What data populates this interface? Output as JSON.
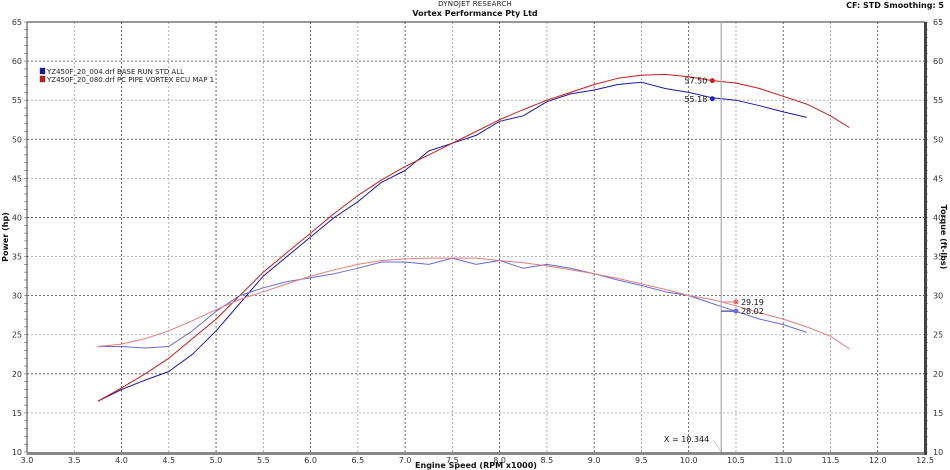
{
  "header": {
    "company": "DYNOJET RESEARCH",
    "shop": "Vortex Performance Pty Ltd",
    "settings": "CF: STD  Smoothing: 5"
  },
  "legend": [
    {
      "label": "YZ450F_20_004.drf BASE RUN STD ALL",
      "color": "#1a1aa0"
    },
    {
      "label": "YZ450F_20_080.drf PC PIPE VORTEX ECU MAP 1",
      "color": "#c02020"
    }
  ],
  "cursor": {
    "label": "X = 10.344",
    "x": 10.344
  },
  "annotations": {
    "power_red": "57.50",
    "power_blue": "55.18",
    "torque_red": "29.19",
    "torque_blue": "28.02"
  },
  "chart_data": {
    "type": "line",
    "title": "DYNOJET RESEARCH - Vortex Performance Pty Ltd",
    "xlabel": "Engine Speed (RPM x1000)",
    "ylabel": "Power (hp)",
    "y2label": "Torque (ft-lbs)",
    "xlim": [
      3.0,
      12.5
    ],
    "ylim": [
      10,
      65
    ],
    "y2lim": [
      10,
      65
    ],
    "x_ticks": [
      "3.0",
      "3.5",
      "4.0",
      "4.5",
      "5.0",
      "5.5",
      "6.0",
      "6.5",
      "7.0",
      "7.5",
      "8.0",
      "8.5",
      "9.0",
      "9.5",
      "10.0",
      "10.5",
      "11.0",
      "11.5",
      "12.0",
      "12.5"
    ],
    "y_ticks": [
      "10",
      "15",
      "20",
      "25",
      "30",
      "35",
      "40",
      "45",
      "50",
      "55",
      "60",
      "65"
    ],
    "grid": true,
    "legend_position": "top-left",
    "series": [
      {
        "name": "YZ450F_20_004.drf BASE RUN STD ALL - Power",
        "color": "#1a1aa0",
        "x": [
          3.75,
          4.0,
          4.25,
          4.5,
          4.75,
          5.0,
          5.25,
          5.5,
          5.75,
          6.0,
          6.25,
          6.5,
          6.75,
          7.0,
          7.25,
          7.5,
          7.75,
          8.0,
          8.25,
          8.5,
          8.75,
          9.0,
          9.25,
          9.5,
          9.75,
          10.0,
          10.25,
          10.5,
          10.75,
          11.0,
          11.25
        ],
        "values": [
          16.5,
          18.0,
          19.2,
          20.3,
          22.5,
          25.5,
          29.0,
          32.5,
          35.0,
          37.5,
          40.0,
          42.0,
          44.5,
          46.0,
          48.5,
          49.5,
          50.5,
          52.3,
          53.0,
          54.8,
          55.8,
          56.3,
          57.0,
          57.3,
          56.5,
          56.0,
          55.3,
          55.0,
          54.3,
          53.5,
          52.8
        ]
      },
      {
        "name": "YZ450F_20_080.drf PC PIPE VORTEX ECU MAP 1 - Power",
        "color": "#c02020",
        "x": [
          3.75,
          4.0,
          4.25,
          4.5,
          4.75,
          5.0,
          5.25,
          5.5,
          5.75,
          6.0,
          6.25,
          6.5,
          6.75,
          7.0,
          7.25,
          7.5,
          7.75,
          8.0,
          8.25,
          8.5,
          8.75,
          9.0,
          9.25,
          9.5,
          9.75,
          10.0,
          10.25,
          10.5,
          10.75,
          11.0,
          11.25,
          11.5,
          11.7
        ],
        "values": [
          16.5,
          18.2,
          20.0,
          22.0,
          24.5,
          27.0,
          30.0,
          33.0,
          35.5,
          38.0,
          40.5,
          42.8,
          44.8,
          46.5,
          48.0,
          49.5,
          51.0,
          52.5,
          53.8,
          55.0,
          56.0,
          57.0,
          57.8,
          58.2,
          58.3,
          58.0,
          57.5,
          57.2,
          56.5,
          55.5,
          54.5,
          53.0,
          51.5
        ]
      },
      {
        "name": "YZ450F_20_004.drf BASE RUN STD ALL - Torque",
        "color": "#6a6ad0",
        "x": [
          3.75,
          4.0,
          4.25,
          4.5,
          4.75,
          5.0,
          5.25,
          5.5,
          5.75,
          6.0,
          6.25,
          6.5,
          6.75,
          7.0,
          7.25,
          7.5,
          7.75,
          8.0,
          8.25,
          8.5,
          8.75,
          9.0,
          9.25,
          9.5,
          9.75,
          10.0,
          10.25,
          10.5,
          10.75,
          11.0,
          11.25
        ],
        "values": [
          23.5,
          23.5,
          23.3,
          23.5,
          25.5,
          28.0,
          30.0,
          31.0,
          31.8,
          32.3,
          32.8,
          33.5,
          34.3,
          34.3,
          34.0,
          34.8,
          34.0,
          34.5,
          33.5,
          34.0,
          33.5,
          32.8,
          32.0,
          31.3,
          30.5,
          30.0,
          29.0,
          28.0,
          27.0,
          26.3,
          25.3
        ]
      },
      {
        "name": "YZ450F_20_080.drf PC PIPE VORTEX ECU MAP 1 - Torque",
        "color": "#e08080",
        "x": [
          3.75,
          4.0,
          4.25,
          4.5,
          4.75,
          5.0,
          5.25,
          5.5,
          5.75,
          6.0,
          6.25,
          6.5,
          6.75,
          7.0,
          7.25,
          7.5,
          7.75,
          8.0,
          8.25,
          8.5,
          8.75,
          9.0,
          9.25,
          9.5,
          9.75,
          10.0,
          10.25,
          10.5,
          10.75,
          11.0,
          11.25,
          11.5,
          11.7
        ],
        "values": [
          23.5,
          23.8,
          24.5,
          25.5,
          26.8,
          28.2,
          29.5,
          30.5,
          31.5,
          32.5,
          33.3,
          34.0,
          34.5,
          34.7,
          34.8,
          34.8,
          34.8,
          34.5,
          34.2,
          33.8,
          33.3,
          32.8,
          32.2,
          31.5,
          30.8,
          30.0,
          29.5,
          28.7,
          27.8,
          27.0,
          26.0,
          24.8,
          23.2
        ]
      }
    ],
    "annotations": [
      {
        "x": 10.344,
        "text": "X = 10.344",
        "type": "cursor"
      },
      {
        "series": "red power",
        "value": 57.5
      },
      {
        "series": "blue power",
        "value": 55.18
      },
      {
        "series": "red torque",
        "value": 29.19
      },
      {
        "series": "blue torque",
        "value": 28.02
      }
    ]
  }
}
